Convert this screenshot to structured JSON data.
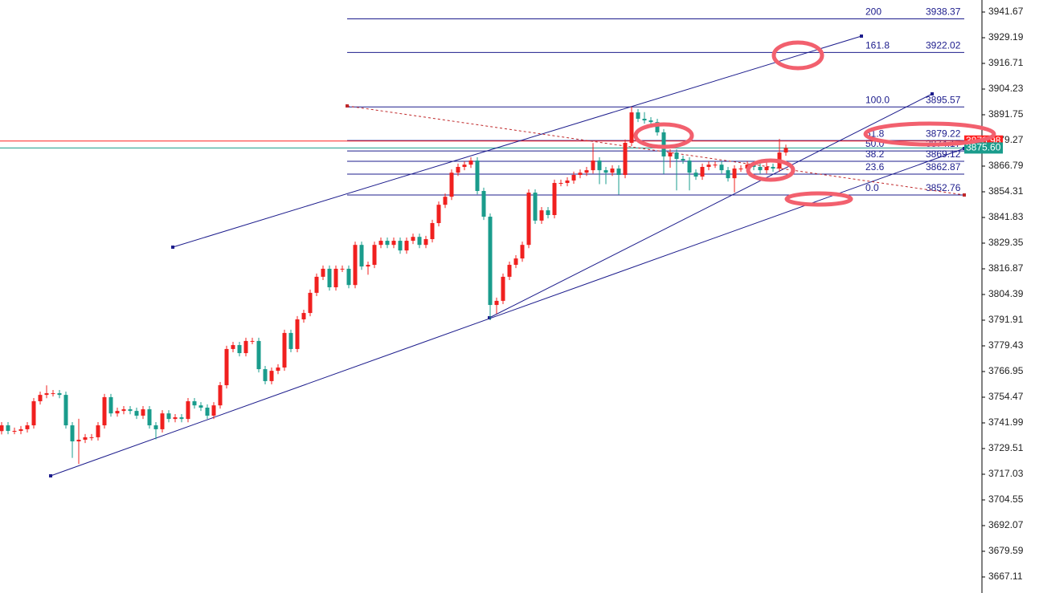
{
  "chart_data": {
    "type": "candlestick",
    "xlim": [
      -0.25,
      152.5
    ],
    "ylim": [
      3659.31,
      3947.52
    ],
    "yticks": [
      3941.67,
      3929.19,
      3916.71,
      3904.23,
      3891.75,
      3879.27,
      3866.79,
      3854.31,
      3841.83,
      3829.35,
      3816.87,
      3804.39,
      3791.91,
      3779.43,
      3766.95,
      3754.47,
      3741.99,
      3729.51,
      3717.03,
      3704.55,
      3692.07,
      3679.59,
      3667.11
    ],
    "up_color": "#f0201f",
    "down_color": "#1a9c8c",
    "open": [
      3738.0,
      3740.8,
      3738.1,
      3738.1,
      3738.9,
      3740.8,
      3752.5,
      3755.6,
      3756.4,
      3756.4,
      3755.6,
      3740.8,
      3733.0,
      3733.8,
      3735.0,
      3735.0,
      3740.8,
      3754.5,
      3746.6,
      3747.8,
      3748.6,
      3747.8,
      3745.5,
      3748.6,
      3740.8,
      3738.9,
      3746.6,
      3743.9,
      3744.7,
      3743.9,
      3752.5,
      3750.5,
      3749.4,
      3745.5,
      3750.5,
      3760.3,
      3777.9,
      3779.8,
      3775.9,
      3781.8,
      3781.8,
      3768.1,
      3762.3,
      3767.3,
      3768.9,
      3785.7,
      3777.9,
      3792.3,
      3795.4,
      3805.2,
      3813.0,
      3816.9,
      3807.9,
      3816.9,
      3816.9,
      3809.0,
      3828.5,
      3818.0,
      3818.8,
      3828.5,
      3830.5,
      3828.5,
      3830.5,
      3825.8,
      3830.5,
      3832.4,
      3828.5,
      3831.3,
      3839.1,
      3848.0,
      3851.9,
      3863.6,
      3866.4,
      3867.5,
      3869.5,
      3854.7,
      3842.2,
      3799.3,
      3801.3,
      3813.0,
      3818.8,
      3821.9,
      3828.5,
      3853.9,
      3840.3,
      3845.3,
      3843.0,
      3858.6,
      3858.6,
      3859.8,
      3862.5,
      3863.6,
      3864.8,
      3869.5,
      3864.8,
      3863.6,
      3865.6,
      3862.5,
      3878.1,
      3892.9,
      3889.8,
      3889.0,
      3888.2,
      3883.2,
      3871.5,
      3873.4,
      3870.3,
      3869.5,
      3863.6,
      3861.7,
      3866.4,
      3867.5,
      3867.5,
      3864.8,
      3860.9,
      3865.6,
      3865.6,
      3867.5,
      3866.4,
      3864.8,
      3866.4,
      3865.6,
      3873.4
    ],
    "high": [
      3742.4,
      3742.4,
      3739.7,
      3740.5,
      3742.4,
      3754.1,
      3757.2,
      3760.2,
      3758.0,
      3758.0,
      3757.2,
      3742.4,
      3744.0,
      3736.6,
      3736.6,
      3742.4,
      3756.1,
      3756.1,
      3749.4,
      3750.2,
      3750.2,
      3749.4,
      3750.2,
      3750.2,
      3742.4,
      3748.2,
      3748.2,
      3746.3,
      3746.3,
      3754.1,
      3754.1,
      3752.1,
      3751.0,
      3752.1,
      3761.9,
      3779.5,
      3781.4,
      3781.4,
      3783.4,
      3783.4,
      3783.4,
      3769.7,
      3768.9,
      3770.5,
      3787.3,
      3787.3,
      3793.9,
      3797.0,
      3806.8,
      3814.6,
      3818.5,
      3818.5,
      3818.5,
      3818.5,
      3818.5,
      3830.1,
      3830.1,
      3820.4,
      3830.1,
      3832.1,
      3832.1,
      3832.1,
      3832.1,
      3832.1,
      3834.0,
      3834.0,
      3832.9,
      3840.7,
      3849.6,
      3853.5,
      3865.2,
      3868.0,
      3869.1,
      3871.1,
      3871.1,
      3856.3,
      3843.8,
      3802.9,
      3814.6,
      3820.4,
      3823.5,
      3830.1,
      3855.5,
      3855.5,
      3846.9,
      3846.9,
      3860.2,
      3860.2,
      3861.4,
      3864.1,
      3865.2,
      3866.4,
      3878.0,
      3871.1,
      3866.4,
      3867.2,
      3867.2,
      3879.7,
      3895.6,
      3894.5,
      3893.0,
      3890.6,
      3889.8,
      3884.8,
      3875.0,
      3875.0,
      3871.9,
      3871.1,
      3865.2,
      3868.0,
      3869.1,
      3869.1,
      3869.1,
      3866.4,
      3867.2,
      3867.2,
      3869.1,
      3869.1,
      3868.0,
      3870.0,
      3868.0,
      3880.0,
      3877.2
    ],
    "low": [
      3736.4,
      3736.5,
      3736.5,
      3736.5,
      3737.3,
      3739.2,
      3750.9,
      3754.0,
      3754.8,
      3754.0,
      3739.2,
      3725.0,
      3722.0,
      3732.2,
      3733.4,
      3733.4,
      3739.2,
      3745.0,
      3745.0,
      3746.2,
      3746.2,
      3743.9,
      3743.9,
      3739.2,
      3734.0,
      3737.3,
      3742.3,
      3742.3,
      3742.3,
      3742.3,
      3748.9,
      3747.8,
      3743.9,
      3743.9,
      3748.9,
      3758.7,
      3776.3,
      3774.3,
      3774.3,
      3780.2,
      3766.5,
      3760.7,
      3760.7,
      3765.7,
      3767.3,
      3776.3,
      3776.3,
      3790.7,
      3793.8,
      3803.6,
      3811.4,
      3806.3,
      3806.3,
      3815.3,
      3807.4,
      3807.4,
      3816.4,
      3814.0,
      3817.2,
      3826.9,
      3826.9,
      3826.9,
      3824.2,
      3824.2,
      3828.9,
      3826.9,
      3826.9,
      3829.7,
      3837.5,
      3846.4,
      3850.3,
      3862.0,
      3864.8,
      3865.9,
      3853.1,
      3840.6,
      3791.9,
      3795.0,
      3799.7,
      3811.4,
      3817.2,
      3820.3,
      3826.9,
      3838.7,
      3838.7,
      3841.4,
      3841.4,
      3857.0,
      3857.0,
      3858.2,
      3860.9,
      3862.0,
      3863.2,
      3858.0,
      3858.0,
      3862.0,
      3853.0,
      3860.9,
      3876.5,
      3888.2,
      3887.4,
      3886.6,
      3881.6,
      3863.0,
      3866.0,
      3855.0,
      3867.9,
      3855.0,
      3860.1,
      3860.1,
      3864.8,
      3865.9,
      3863.2,
      3859.3,
      3854.0,
      3864.0,
      3864.0,
      3864.8,
      3863.2,
      3863.2,
      3864.0,
      3864.0,
      3871.8
    ],
    "close": [
      3740.8,
      3738.1,
      3738.1,
      3738.9,
      3740.8,
      3752.5,
      3755.6,
      3756.4,
      3756.4,
      3755.6,
      3740.8,
      3733.0,
      3733.8,
      3735.0,
      3735.0,
      3740.8,
      3754.5,
      3746.6,
      3747.8,
      3748.6,
      3747.8,
      3745.5,
      3748.6,
      3740.8,
      3738.9,
      3746.6,
      3743.9,
      3744.7,
      3743.9,
      3752.5,
      3750.5,
      3749.4,
      3745.5,
      3750.5,
      3760.3,
      3777.9,
      3779.8,
      3775.9,
      3781.8,
      3781.8,
      3768.1,
      3762.3,
      3767.3,
      3768.9,
      3785.7,
      3777.9,
      3792.3,
      3795.4,
      3805.2,
      3813.0,
      3816.9,
      3807.9,
      3816.9,
      3816.9,
      3809.0,
      3828.5,
      3818.0,
      3818.8,
      3828.5,
      3830.5,
      3828.5,
      3830.5,
      3825.8,
      3830.5,
      3832.4,
      3828.5,
      3831.3,
      3839.1,
      3848.0,
      3851.9,
      3863.6,
      3866.4,
      3867.5,
      3869.5,
      3854.7,
      3842.2,
      3799.3,
      3801.3,
      3813.0,
      3818.8,
      3821.9,
      3828.5,
      3853.9,
      3840.3,
      3845.3,
      3843.0,
      3858.6,
      3858.6,
      3859.8,
      3862.5,
      3863.6,
      3864.8,
      3869.5,
      3864.8,
      3863.6,
      3865.6,
      3862.5,
      3878.1,
      3892.9,
      3889.8,
      3889.0,
      3888.2,
      3883.2,
      3871.5,
      3873.4,
      3870.3,
      3869.5,
      3863.6,
      3861.7,
      3866.4,
      3867.5,
      3867.5,
      3864.8,
      3860.9,
      3865.6,
      3865.6,
      3867.5,
      3866.4,
      3864.8,
      3866.4,
      3865.6,
      3873.4,
      3875.6
    ],
    "fibonacci": {
      "x": [
        53.75,
        149.75
      ],
      "levels": [
        {
          "label": "200",
          "price": 3938.37
        },
        {
          "label": "161.8",
          "price": 3922.02
        },
        {
          "label": "100.0",
          "price": 3895.57
        },
        {
          "label": "61.8",
          "price": 3879.22
        },
        {
          "label": "50.0",
          "price": 3874.17
        },
        {
          "label": "38.2",
          "price": 3869.12
        },
        {
          "label": "23.6",
          "price": 3862.87
        },
        {
          "label": "0.0",
          "price": 3852.76
        }
      ]
    },
    "trendlines": [
      {
        "x": [
          26.63,
          133.75
        ],
        "y": [
          3827.4,
          3929.97
        ],
        "color": "#1c1c8c"
      },
      {
        "x": [
          7.63,
          149.75
        ],
        "y": [
          3716.25,
          3875.37
        ],
        "color": "#1c1c8c"
      },
      {
        "x": [
          75.88,
          144.75
        ],
        "y": [
          3793.08,
          3901.89
        ],
        "color": "#1c1c8c"
      },
      {
        "x": [
          53.75,
          149.75
        ],
        "y": [
          3896.04,
          3852.75
        ],
        "color": "#c0282a"
      }
    ],
    "price_lines": [
      {
        "value": 3878.98,
        "color": "#ff2020"
      },
      {
        "value": 3875.6,
        "label": "3875.60",
        "color": "#1a9c8c"
      }
    ]
  }
}
